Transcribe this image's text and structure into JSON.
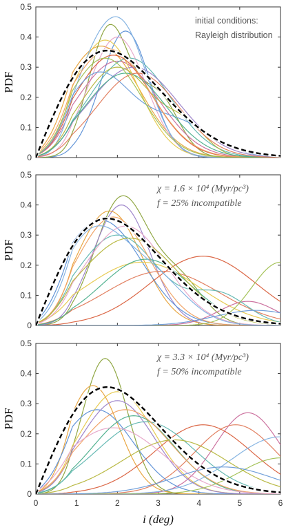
{
  "chart_data": [
    {
      "type": "line",
      "ylabel": "PDF",
      "xlabel": "",
      "xlim": [
        0,
        6
      ],
      "ylim": [
        0,
        0.5
      ],
      "x_ticks": [],
      "y_ticks": [
        "0",
        "0.1",
        "0.2",
        "0.3",
        "0.4",
        "0.5"
      ],
      "annotation": [
        "initial conditions:",
        "Rayleigh distribution"
      ],
      "reference_curve": {
        "style": "black-dashed",
        "description": "Rayleigh",
        "mode_x": 1.75,
        "peak_y": 0.355
      },
      "series": [
        {
          "color": "#e8a23a",
          "peaks": [
            [
              1.6,
              0.37,
              0.95
            ]
          ]
        },
        {
          "color": "#5b8fd6",
          "peaks": [
            [
              2.2,
              0.42,
              0.6
            ]
          ]
        },
        {
          "color": "#8aa23a",
          "peaks": [
            [
              1.8,
              0.43,
              0.5
            ],
            [
              3.0,
              0.2,
              0.5
            ]
          ]
        },
        {
          "color": "#e6a4c8",
          "peaks": [
            [
              2.0,
              0.4,
              0.7
            ]
          ]
        },
        {
          "color": "#c96a9a",
          "peaks": [
            [
              2.0,
              0.32,
              1.0
            ]
          ]
        },
        {
          "color": "#e6c84a",
          "peaks": [
            [
              1.7,
              0.39,
              0.8
            ]
          ]
        },
        {
          "color": "#5fb6b0",
          "peaks": [
            [
              2.3,
              0.33,
              1.0
            ]
          ]
        },
        {
          "color": "#7fb0e0",
          "peaks": [
            [
              2.1,
              0.43,
              0.65
            ],
            [
              1.2,
              0.15,
              0.5
            ]
          ]
        },
        {
          "color": "#d95f3c",
          "peaks": [
            [
              1.9,
              0.34,
              0.95
            ]
          ]
        },
        {
          "color": "#9a7fc8",
          "peaks": [
            [
              2.4,
              0.3,
              1.1
            ]
          ]
        },
        {
          "color": "#b5b53a",
          "peaks": [
            [
              2.0,
              0.3,
              0.9
            ],
            [
              3.7,
              0.08,
              0.5
            ]
          ]
        },
        {
          "color": "#6a9bd8",
          "peaks": [
            [
              1.5,
              0.27,
              0.8
            ],
            [
              3.4,
              0.12,
              0.9
            ]
          ]
        },
        {
          "color": "#f0a060",
          "peaks": [
            [
              1.8,
              0.36,
              1.0
            ]
          ]
        },
        {
          "color": "#4caf8c",
          "peaks": [
            [
              2.2,
              0.28,
              1.0
            ]
          ]
        },
        {
          "color": "#a0c050",
          "peaks": [
            [
              1.7,
              0.33,
              0.9
            ]
          ]
        },
        {
          "color": "#e07a5a",
          "peaks": [
            [
              2.5,
              0.28,
              1.0
            ]
          ]
        }
      ]
    },
    {
      "type": "line",
      "ylabel": "PDF",
      "xlabel": "",
      "xlim": [
        0,
        6
      ],
      "ylim": [
        0,
        0.5
      ],
      "x_ticks": [],
      "y_ticks": [
        "0",
        "0.1",
        "0.2",
        "0.3",
        "0.4",
        "0.5"
      ],
      "annotation": [
        "χ = 1.6 × 10⁴  (Myr/pc³)",
        "f = 25%  incompatible"
      ],
      "reference_curve": {
        "style": "black-dashed",
        "description": "Rayleigh",
        "mode_x": 1.75,
        "peak_y": 0.355
      },
      "series": [
        {
          "color": "#8aa23a",
          "peaks": [
            [
              2.1,
              0.42,
              0.65
            ],
            [
              3.5,
              0.15,
              0.6
            ]
          ]
        },
        {
          "color": "#9a7fc8",
          "peaks": [
            [
              2.1,
              0.4,
              0.7
            ]
          ]
        },
        {
          "color": "#e8a23a",
          "peaks": [
            [
              1.8,
              0.38,
              0.8
            ]
          ]
        },
        {
          "color": "#5b8fd6",
          "peaks": [
            [
              1.6,
              0.35,
              1.0
            ]
          ]
        },
        {
          "color": "#e6c84a",
          "peaks": [
            [
              2.6,
              0.21,
              1.4
            ]
          ]
        },
        {
          "color": "#d95f3c",
          "peaks": [
            [
              4.1,
              0.23,
              1.3
            ]
          ]
        },
        {
          "color": "#e07a5a",
          "peaks": [
            [
              3.1,
              0.18,
              1.4
            ]
          ]
        },
        {
          "color": "#c96a9a",
          "peaks": [
            [
              5.2,
              0.08,
              0.7
            ]
          ]
        },
        {
          "color": "#4caf8c",
          "peaks": [
            [
              2.7,
              0.22,
              1.1
            ]
          ]
        },
        {
          "color": "#a0c050",
          "peaks": [
            [
              6.0,
              0.21,
              0.7
            ]
          ]
        },
        {
          "color": "#5fb6b0",
          "peaks": [
            [
              2.0,
              0.3,
              1.0
            ],
            [
              4.5,
              0.1,
              0.7
            ]
          ]
        },
        {
          "color": "#f0a060",
          "peaks": [
            [
              1.9,
              0.36,
              0.9
            ]
          ]
        },
        {
          "color": "#e6a4c8",
          "peaks": [
            [
              2.2,
              0.33,
              1.0
            ]
          ]
        },
        {
          "color": "#7fb0e0",
          "peaks": [
            [
              1.4,
              0.3,
              0.8
            ],
            [
              2.9,
              0.15,
              0.8
            ]
          ]
        },
        {
          "color": "#b5b53a",
          "peaks": [
            [
              2.3,
              0.29,
              1.2
            ]
          ]
        },
        {
          "color": "#6a9bd8",
          "peaks": [
            [
              5.4,
              0.05,
              1.0
            ]
          ]
        }
      ]
    },
    {
      "type": "line",
      "ylabel": "PDF",
      "xlabel": "i  (deg)",
      "xlim": [
        0,
        6
      ],
      "ylim": [
        0,
        0.5
      ],
      "x_ticks": [
        "0",
        "1",
        "2",
        "3",
        "4",
        "5",
        "6"
      ],
      "y_ticks": [
        "0",
        "0.1",
        "0.2",
        "0.3",
        "0.4",
        "0.5"
      ],
      "annotation": [
        "χ = 3.3 × 10⁴  (Myr/pc³)",
        "f = 50%  incompatible"
      ],
      "reference_curve": {
        "style": "black-dashed",
        "description": "Rayleigh",
        "mode_x": 1.75,
        "peak_y": 0.355
      },
      "series": [
        {
          "color": "#8aa23a",
          "peaks": [
            [
              1.7,
              0.45,
              0.55
            ]
          ]
        },
        {
          "color": "#e8a23a",
          "peaks": [
            [
              1.4,
              0.36,
              0.65
            ]
          ]
        },
        {
          "color": "#e6c84a",
          "peaks": [
            [
              2.0,
              0.34,
              0.9
            ]
          ]
        },
        {
          "color": "#c96a9a",
          "peaks": [
            [
              5.2,
              0.27,
              0.8
            ]
          ]
        },
        {
          "color": "#d95f3c",
          "peaks": [
            [
              4.1,
              0.23,
              1.2
            ]
          ]
        },
        {
          "color": "#e07a5a",
          "peaks": [
            [
              4.9,
              0.23,
              1.0
            ]
          ]
        },
        {
          "color": "#5b8fd6",
          "peaks": [
            [
              1.5,
              0.28,
              0.9
            ]
          ]
        },
        {
          "color": "#7fb0e0",
          "peaks": [
            [
              6.0,
              0.19,
              1.2
            ]
          ]
        },
        {
          "color": "#9a7fc8",
          "peaks": [
            [
              2.0,
              0.31,
              0.9
            ]
          ]
        },
        {
          "color": "#4caf8c",
          "peaks": [
            [
              2.4,
              0.26,
              1.0
            ]
          ]
        },
        {
          "color": "#a0c050",
          "peaks": [
            [
              6.0,
              0.12,
              1.0
            ]
          ]
        },
        {
          "color": "#5fb6b0",
          "peaks": [
            [
              2.7,
              0.24,
              1.2
            ]
          ]
        },
        {
          "color": "#f0a060",
          "peaks": [
            [
              2.2,
              0.28,
              1.1
            ]
          ]
        },
        {
          "color": "#b5b53a",
          "peaks": [
            [
              3.4,
              0.18,
              1.3
            ]
          ]
        },
        {
          "color": "#e6a4c8",
          "peaks": [
            [
              1.9,
              0.22,
              1.2
            ]
          ]
        },
        {
          "color": "#6a9bd8",
          "peaks": [
            [
              4.6,
              0.09,
              1.2
            ]
          ]
        }
      ]
    }
  ]
}
